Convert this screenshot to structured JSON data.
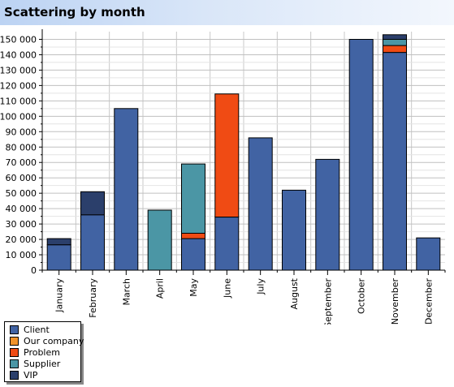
{
  "title": "Scattering by month",
  "chart_data": {
    "type": "bar",
    "stacked": true,
    "categories": [
      "January",
      "February",
      "March",
      "April",
      "May",
      "June",
      "July",
      "August",
      "September",
      "October",
      "November",
      "December"
    ],
    "series": [
      {
        "name": "Client",
        "color": "#4163a3",
        "values": [
          16500,
          36000,
          105000,
          0,
          20500,
          34500,
          86000,
          52000,
          72000,
          150000,
          141500,
          21000
        ]
      },
      {
        "name": "Our company",
        "color": "#f0922a",
        "values": [
          0,
          0,
          0,
          0,
          0,
          0,
          0,
          0,
          0,
          0,
          0,
          0
        ]
      },
      {
        "name": "Problem",
        "color": "#f04b14",
        "values": [
          0,
          0,
          0,
          0,
          3500,
          80000,
          0,
          0,
          0,
          0,
          4500,
          0
        ]
      },
      {
        "name": "Supplier",
        "color": "#4b96a5",
        "values": [
          0,
          0,
          0,
          39000,
          45000,
          0,
          0,
          0,
          0,
          0,
          4000,
          0
        ]
      },
      {
        "name": "VIP",
        "color": "#2b3f6b",
        "values": [
          4000,
          15000,
          0,
          0,
          0,
          0,
          0,
          0,
          0,
          0,
          3000,
          0
        ]
      }
    ],
    "y_ticks": [
      "0",
      "10 000",
      "20 000",
      "30 000",
      "40 000",
      "50 000",
      "60 000",
      "70 000",
      "80 000",
      "90 000",
      "100 000",
      "110 000",
      "120 000",
      "130 000",
      "140 000",
      "150 000"
    ],
    "ylim": [
      0,
      155000
    ],
    "grid": true,
    "legend_position": "bottom-left"
  }
}
